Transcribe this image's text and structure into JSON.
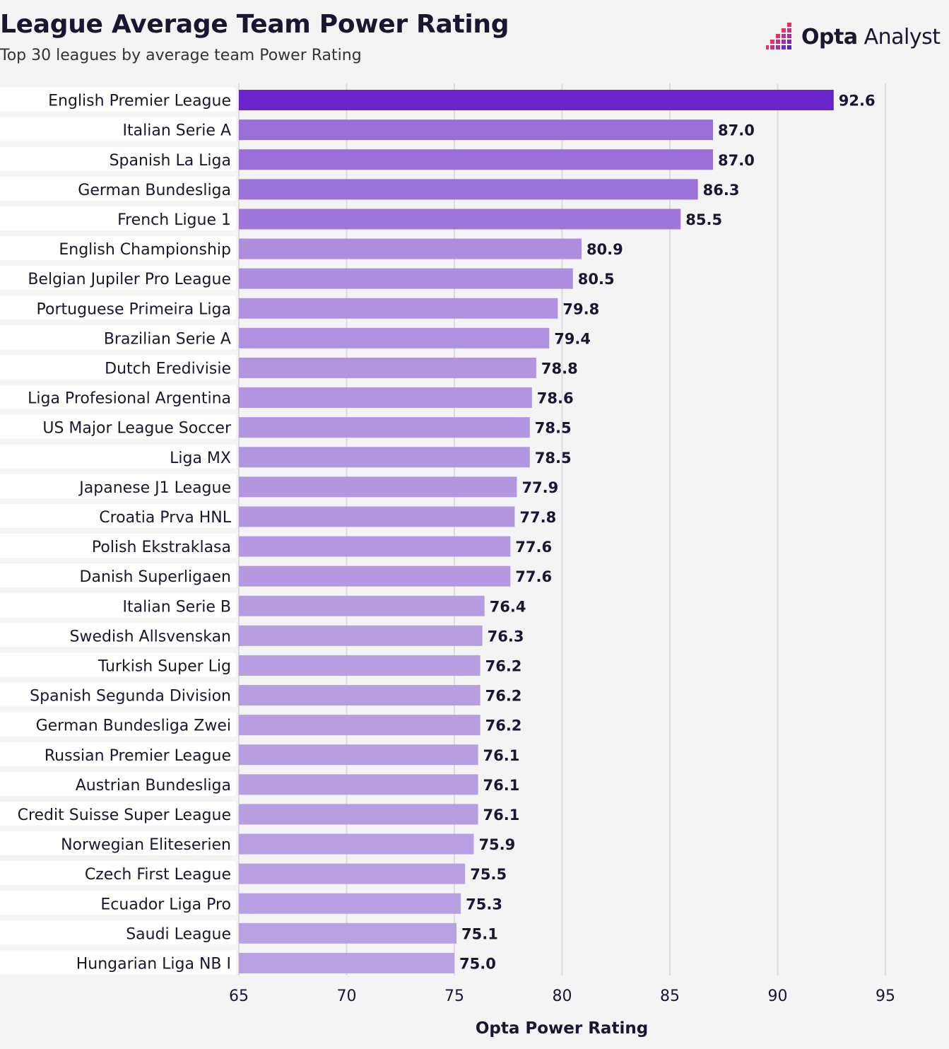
{
  "header": {
    "title": "League Average Team Power Rating",
    "subtitle": "Top 30 leagues by average team Power Rating"
  },
  "logo": {
    "brand_bold": "Opta",
    "brand_light": "Analyst",
    "icon": "opta-pixel-bars-icon"
  },
  "colors": {
    "bar_top": "#6a22c9",
    "bar_bottom": "#b9a2e2",
    "background": "#f4f4f5",
    "grid": "#dcdce0",
    "logo_accent": "#e8315f"
  },
  "chart_data": {
    "type": "bar",
    "orientation": "horizontal",
    "title": "League Average Team Power Rating",
    "subtitle": "Top 30 leagues by average team Power Rating",
    "xlabel": "Opta Power Rating",
    "ylabel": "",
    "xlim": [
      65,
      95
    ],
    "xticks": [
      65,
      70,
      75,
      80,
      85,
      90,
      95
    ],
    "grid": "vertical",
    "categories": [
      "English Premier League",
      "Italian Serie A",
      "Spanish La Liga",
      "German Bundesliga",
      "French Ligue 1",
      "English Championship",
      "Belgian Jupiler Pro League",
      "Portuguese Primeira Liga",
      "Brazilian Serie A",
      "Dutch Eredivisie",
      "Liga Profesional Argentina",
      "US Major League Soccer",
      "Liga MX",
      "Japanese J1 League",
      "Croatia Prva HNL",
      "Polish Ekstraklasa",
      "Danish Superligaen",
      "Italian Serie B",
      "Swedish Allsvenskan",
      "Turkish Super Lig",
      "Spanish Segunda Division",
      "German Bundesliga Zwei",
      "Russian Premier League",
      "Austrian Bundesliga",
      "Credit Suisse Super League",
      "Norwegian Eliteserien",
      "Czech First League",
      "Ecuador Liga Pro",
      "Saudi League",
      "Hungarian Liga NB I"
    ],
    "values": [
      92.6,
      87.0,
      87.0,
      86.3,
      85.5,
      80.9,
      80.5,
      79.8,
      79.4,
      78.8,
      78.6,
      78.5,
      78.5,
      77.9,
      77.8,
      77.6,
      77.6,
      76.4,
      76.3,
      76.2,
      76.2,
      76.2,
      76.1,
      76.1,
      76.1,
      75.9,
      75.5,
      75.3,
      75.1,
      75.0
    ],
    "value_labels": [
      "92.6",
      "87.0",
      "87.0",
      "86.3",
      "85.5",
      "80.9",
      "80.5",
      "79.8",
      "79.4",
      "78.8",
      "78.6",
      "78.5",
      "78.5",
      "77.9",
      "77.8",
      "77.6",
      "77.6",
      "76.4",
      "76.3",
      "76.2",
      "76.2",
      "76.2",
      "76.1",
      "76.1",
      "76.1",
      "75.9",
      "75.5",
      "75.3",
      "75.1",
      "75.0"
    ]
  }
}
